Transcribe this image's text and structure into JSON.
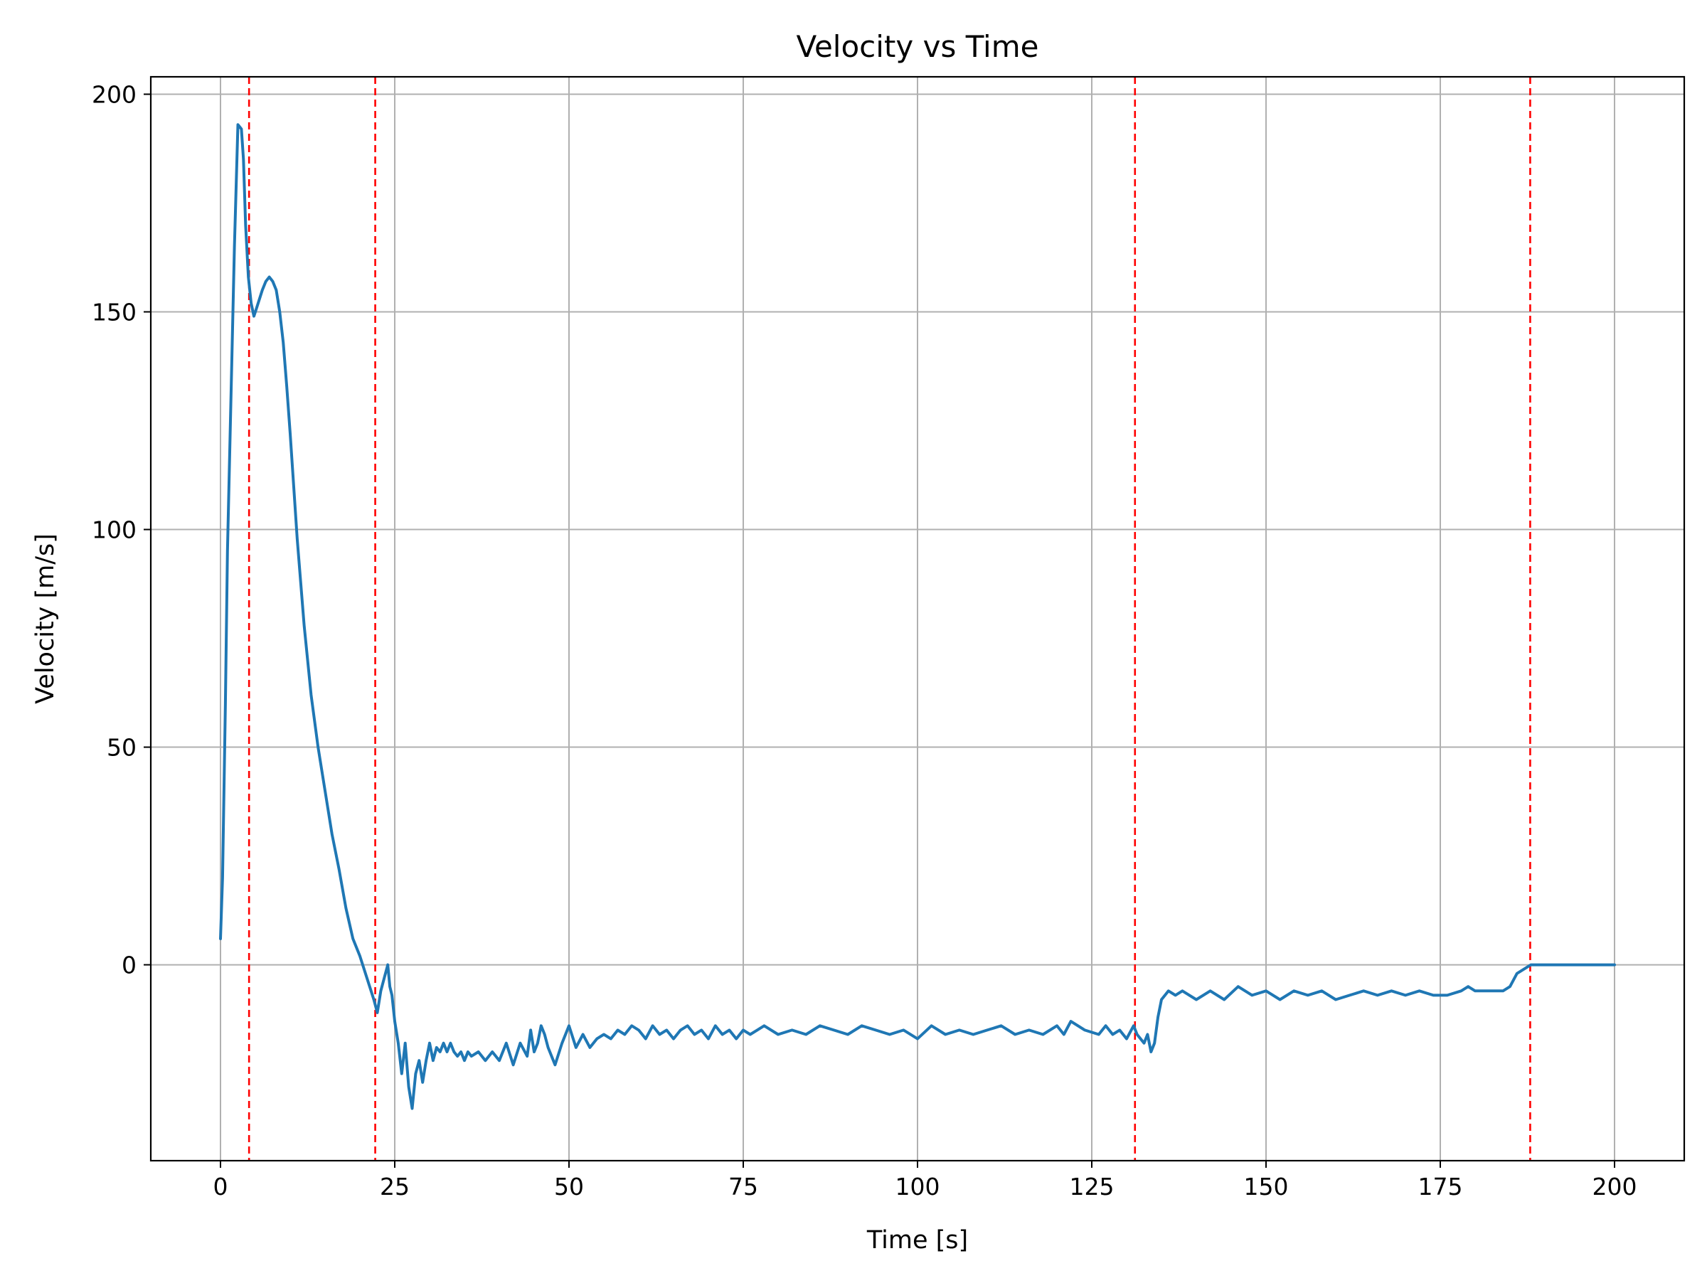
{
  "chart_data": {
    "type": "line",
    "title": "Velocity vs Time",
    "xlabel": "Time [s]",
    "ylabel": "Velocity [m/s]",
    "xlim": [
      -10,
      210
    ],
    "ylim": [
      -45,
      204
    ],
    "xticks": [
      0,
      25,
      50,
      75,
      100,
      125,
      150,
      175,
      200
    ],
    "yticks": [
      0,
      50,
      100,
      150,
      200
    ],
    "grid": true,
    "legend": "none",
    "colors": {
      "line": "#1f77b4",
      "event_lines": "#ff0000",
      "grid": "#b0b0b0"
    },
    "event_lines_x": [
      4.1,
      22.2,
      131.2,
      187.9
    ],
    "series": [
      {
        "x": [
          0,
          0.3,
          0.7,
          1.0,
          1.5,
          2.0,
          2.5,
          3.0,
          3.3,
          3.6,
          4.0,
          4.4,
          4.8,
          5.2,
          5.6,
          6.0,
          6.5,
          7.0,
          7.5,
          8.0,
          8.5,
          9.0,
          9.5,
          10.0,
          10.5,
          11.0,
          11.5,
          12.0,
          12.5,
          13.0,
          14.0,
          15.0,
          16.0,
          17.0,
          18.0,
          19.0,
          20.0,
          21.0,
          22.0,
          22.5,
          23.0,
          23.5,
          24.0,
          24.3,
          24.6,
          25.0,
          25.5,
          26.0,
          26.5,
          27.0,
          27.5,
          28.0,
          28.5,
          29.0,
          29.5,
          30.0,
          30.5,
          31.0,
          31.5,
          32.0,
          32.5,
          33.0,
          33.5,
          34.0,
          34.5,
          35.0,
          35.5,
          36.0,
          37.0,
          38.0,
          39.0,
          40.0,
          41.0,
          42.0,
          43.0,
          44.0,
          44.5,
          45.0,
          45.5,
          46.0,
          46.5,
          47.0,
          48.0,
          49.0,
          50.0,
          51.0,
          52.0,
          53.0,
          54.0,
          55.0,
          56.0,
          57.0,
          58.0,
          59.0,
          60.0,
          61.0,
          62.0,
          63.0,
          64.0,
          65.0,
          66.0,
          67.0,
          68.0,
          69.0,
          70.0,
          71.0,
          72.0,
          73.0,
          74.0,
          75.0,
          76.0,
          77.0,
          78.0,
          80.0,
          82.0,
          84.0,
          86.0,
          88.0,
          90.0,
          92.0,
          94.0,
          96.0,
          98.0,
          100.0,
          102.0,
          104.0,
          106.0,
          108.0,
          110.0,
          112.0,
          114.0,
          116.0,
          118.0,
          120.0,
          121.0,
          122.0,
          124.0,
          126.0,
          127.0,
          128.0,
          129.0,
          130.0,
          131.0,
          131.5,
          132.0,
          132.5,
          133.0,
          133.5,
          134.0,
          134.5,
          135.0,
          136.0,
          137.0,
          138.0,
          140.0,
          142.0,
          144.0,
          146.0,
          148.0,
          150.0,
          152.0,
          154.0,
          156.0,
          158.0,
          160.0,
          162.0,
          164.0,
          166.0,
          168.0,
          170.0,
          172.0,
          174.0,
          176.0,
          178.0,
          179.0,
          180.0,
          182.0,
          184.0,
          185.0,
          186.0,
          187.0,
          188.0,
          190.0,
          195.0,
          200.0
        ],
        "values": [
          6,
          20,
          60,
          95,
          130,
          165,
          193,
          192,
          185,
          170,
          158,
          152,
          149,
          151,
          153,
          155,
          157,
          158,
          157,
          155,
          150,
          143,
          133,
          122,
          110,
          98,
          88,
          78,
          70,
          62,
          50,
          40,
          30,
          22,
          13,
          6,
          2,
          -3,
          -8,
          -11,
          -6,
          -3,
          0,
          -5,
          -7,
          -13,
          -18,
          -25,
          -18,
          -28,
          -33,
          -25,
          -22,
          -27,
          -22,
          -18,
          -22,
          -19,
          -20,
          -18,
          -20,
          -18,
          -20,
          -21,
          -20,
          -22,
          -20,
          -21,
          -20,
          -22,
          -20,
          -22,
          -18,
          -23,
          -18,
          -21,
          -15,
          -20,
          -18,
          -14,
          -16,
          -19,
          -23,
          -18,
          -14,
          -19,
          -16,
          -19,
          -17,
          -16,
          -17,
          -15,
          -16,
          -14,
          -15,
          -17,
          -14,
          -16,
          -15,
          -17,
          -15,
          -14,
          -16,
          -15,
          -17,
          -14,
          -16,
          -15,
          -17,
          -15,
          -16,
          -15,
          -14,
          -16,
          -15,
          -16,
          -14,
          -15,
          -16,
          -14,
          -15,
          -16,
          -15,
          -17,
          -14,
          -16,
          -15,
          -16,
          -15,
          -14,
          -16,
          -15,
          -16,
          -14,
          -16,
          -13,
          -15,
          -16,
          -14,
          -16,
          -15,
          -17,
          -14,
          -16,
          -17,
          -18,
          -16,
          -20,
          -18,
          -12,
          -8,
          -6,
          -7,
          -6,
          -8,
          -6,
          -8,
          -5,
          -7,
          -6,
          -8,
          -6,
          -7,
          -6,
          -8,
          -7,
          -6,
          -7,
          -6,
          -7,
          -6,
          -7,
          -7,
          -6,
          -5,
          -6,
          -6,
          -6,
          -5,
          -2,
          -1,
          0,
          0,
          0,
          0
        ]
      }
    ]
  }
}
